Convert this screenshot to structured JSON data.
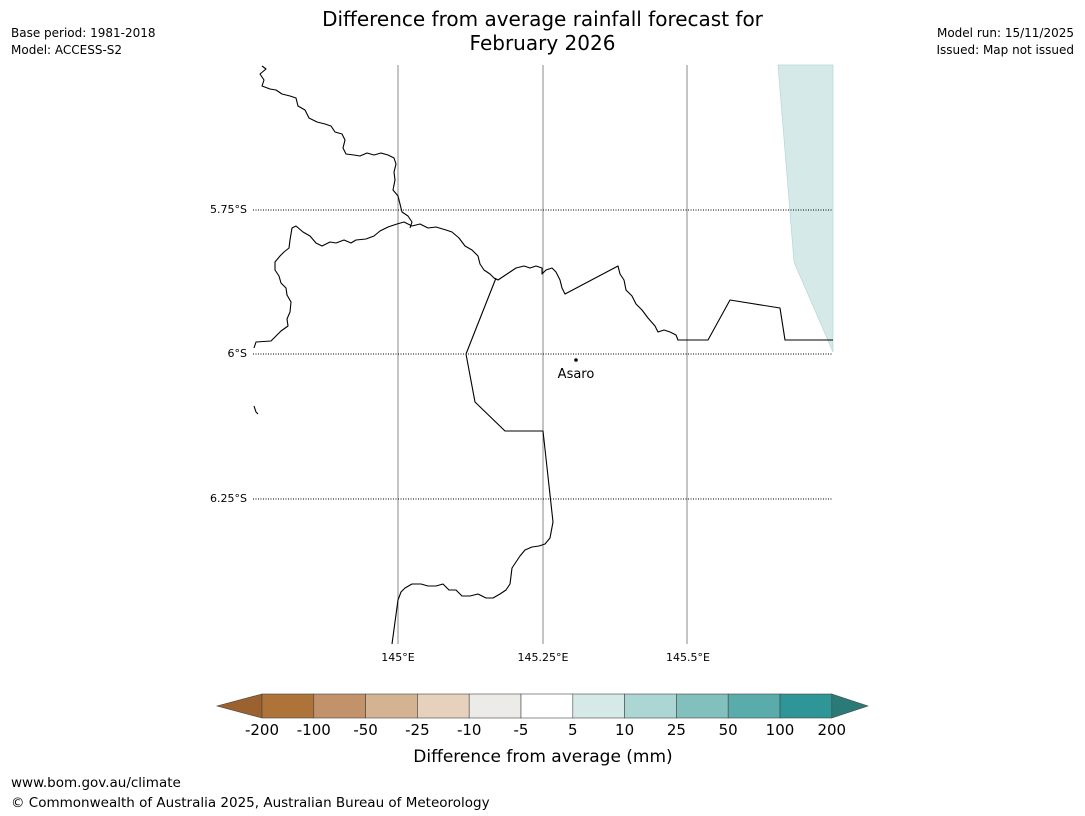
{
  "title": {
    "line1": "Difference from average rainfall forecast for",
    "line2": "February 2026"
  },
  "info_left": {
    "base_period": "Base period: 1981-2018",
    "model": "Model: ACCESS-S2"
  },
  "info_right": {
    "model_run": "Model run: 15/11/2025",
    "issued": "Issued: Map not issued"
  },
  "map": {
    "lat_labels": [
      "5.75°S",
      "6°S",
      "6.25°S"
    ],
    "lon_labels": [
      "145°E",
      "145.25°E",
      "145.5°E"
    ],
    "place": {
      "name": "Asaro"
    },
    "colors": {
      "coast": "#000000",
      "shade_5_10": "#d4e9e8",
      "meridian": "#888888"
    }
  },
  "legend": {
    "title": "Difference from average (mm)",
    "labels": [
      "-200",
      "-100",
      "-50",
      "-25",
      "-10",
      "-5",
      "5",
      "10",
      "25",
      "50",
      "100",
      "200"
    ],
    "colors": [
      "#9b6230",
      "#ad7339",
      "#c2936a",
      "#d4b393",
      "#e5d1bc",
      "#ecebe8",
      "#ffffff",
      "#d4e9e8",
      "#abd6d4",
      "#82c0bd",
      "#5aacab",
      "#2e9696",
      "#2b7a78"
    ]
  },
  "footer": {
    "url": "www.bom.gov.au/climate",
    "copyright": "© Commonwealth of Australia 2025, Australian Bureau of Meteorology"
  }
}
